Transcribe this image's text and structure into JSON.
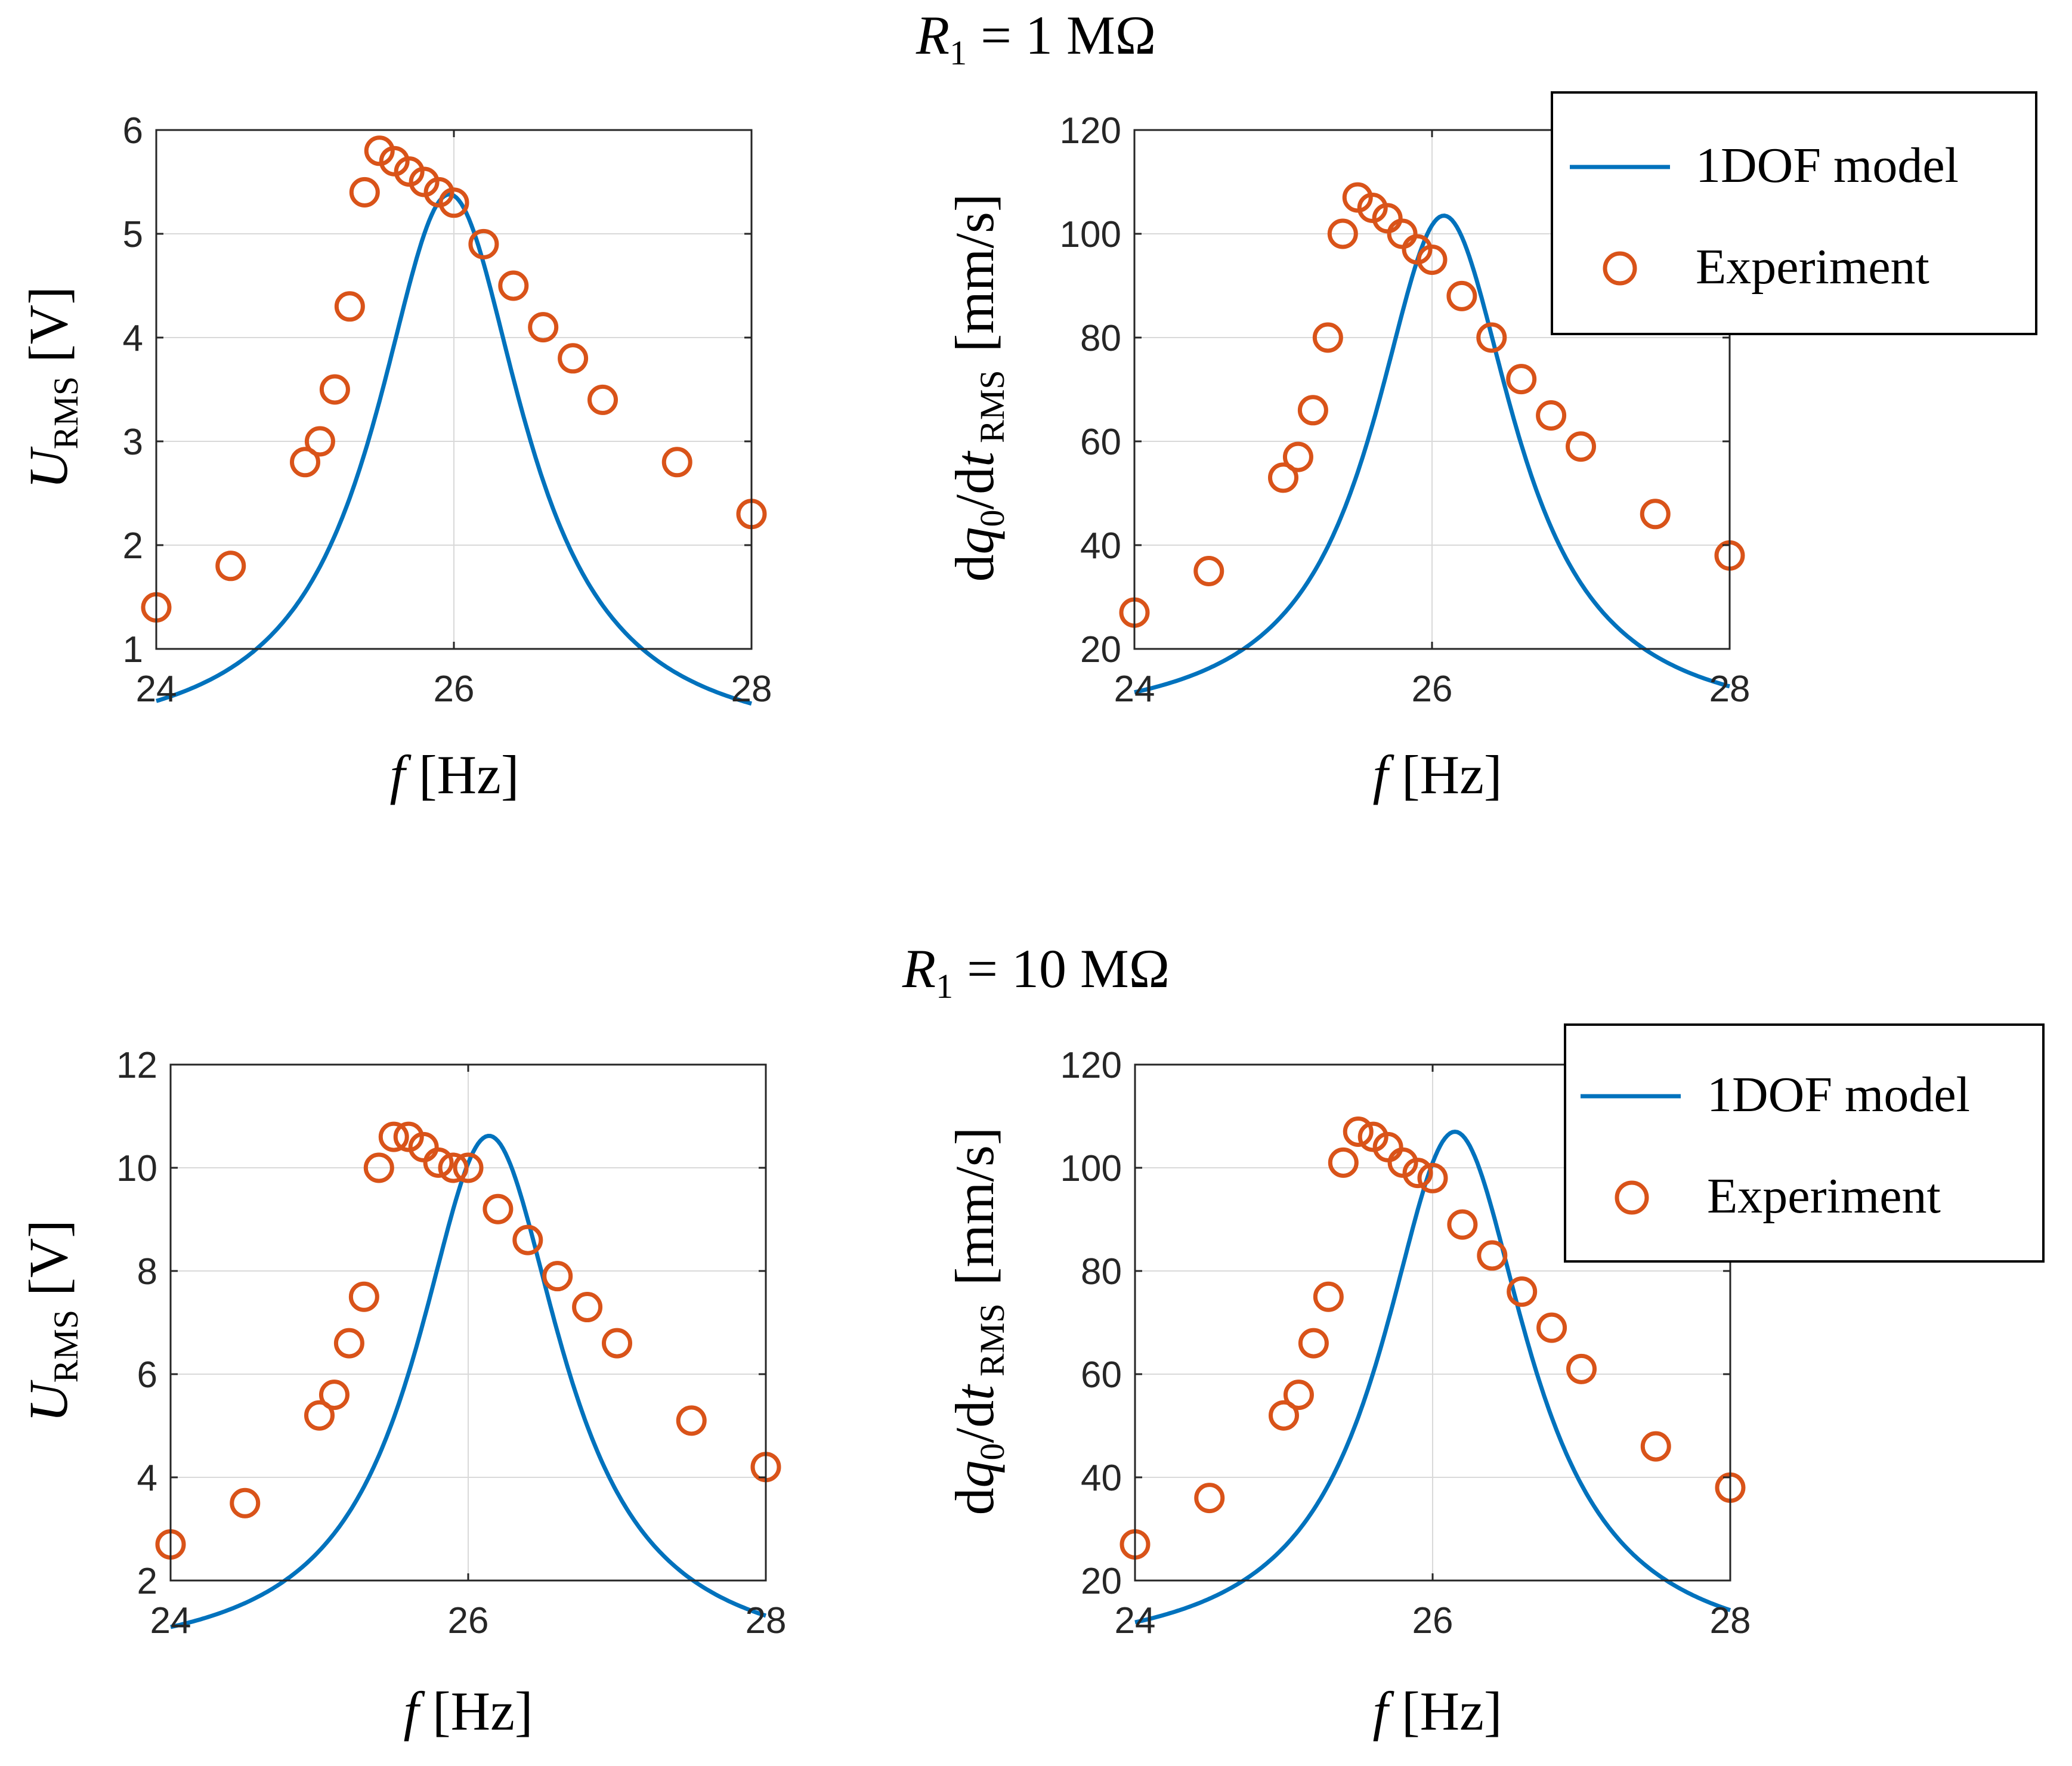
{
  "titles": {
    "top": {
      "sym": "R",
      "sub": "1",
      "rest": " = 1 MΩ"
    },
    "bottom": {
      "sym": "R",
      "sub": "1",
      "rest": " = 10 MΩ"
    }
  },
  "colors": {
    "model": "#0072bd",
    "experiment": "#d95319"
  },
  "legend": {
    "model": "1DOF model",
    "experiment": "Experiment"
  },
  "chart_data": [
    {
      "type": "line+scatter",
      "panel": "top-left",
      "xlabel": {
        "sym": "f",
        "unit": " [Hz]"
      },
      "ylabel": {
        "sym": "U",
        "sub": "RMS",
        "unit": " [V]"
      },
      "xlim": [
        24,
        28
      ],
      "ylim": [
        1,
        6
      ],
      "xticks": [
        24,
        26,
        28
      ],
      "yticks": [
        1,
        2,
        3,
        4,
        5,
        6
      ],
      "grid": true,
      "legend": null,
      "model": {
        "name": "1DOF model",
        "peak_f": 25.97,
        "peak": 5.38,
        "base": 0.03,
        "halfwidth": 0.61
      },
      "experiment": {
        "name": "Experiment",
        "x": [
          24,
          24.5,
          25,
          25.1,
          25.2,
          25.3,
          25.4,
          25.5,
          25.6,
          25.7,
          25.8,
          25.9,
          26,
          26.2,
          26.4,
          26.6,
          26.8,
          27,
          27.5,
          28
        ],
        "y": [
          1.4,
          1.8,
          2.8,
          3.0,
          3.5,
          4.3,
          5.4,
          5.8,
          5.7,
          5.6,
          5.5,
          5.4,
          5.3,
          4.9,
          4.5,
          4.1,
          3.8,
          3.4,
          2.8,
          2.3
        ]
      }
    },
    {
      "type": "line+scatter",
      "panel": "top-right",
      "xlabel": {
        "sym": "f",
        "unit": " [Hz]"
      },
      "ylabel": {
        "pre": "d",
        "sym": "q",
        "sub0": "0",
        "mid": "/d",
        "sym2": "t",
        "sub": " RMS",
        "unit": "[mm/s]"
      },
      "xlim": [
        24,
        28
      ],
      "ylim": [
        20,
        120
      ],
      "xticks": [
        24,
        26,
        28
      ],
      "yticks": [
        20,
        40,
        60,
        80,
        100,
        120
      ],
      "grid": true,
      "legend": "top-right",
      "model": {
        "name": "1DOF model",
        "peak_f": 26.08,
        "peak": 103.5,
        "base": 4.5,
        "halfwidth": 0.58
      },
      "experiment": {
        "name": "Experiment",
        "x": [
          24,
          24.5,
          25,
          25.1,
          25.2,
          25.3,
          25.4,
          25.5,
          25.6,
          25.7,
          25.8,
          25.9,
          26,
          26.2,
          26.4,
          26.6,
          26.8,
          27,
          27.5,
          28
        ],
        "y": [
          27,
          35,
          53,
          57,
          66,
          80,
          100,
          107,
          105,
          103,
          100,
          97,
          95,
          88,
          80,
          72,
          65,
          59,
          46,
          38
        ]
      }
    },
    {
      "type": "line+scatter",
      "panel": "bottom-left",
      "xlabel": {
        "sym": "f",
        "unit": " [Hz]"
      },
      "ylabel": {
        "sym": "U",
        "sub": "RMS",
        "unit": " [V]"
      },
      "xlim": [
        24,
        28
      ],
      "ylim": [
        2,
        12
      ],
      "xticks": [
        24,
        26,
        28
      ],
      "yticks": [
        2,
        4,
        6,
        8,
        10,
        12
      ],
      "grid": true,
      "legend": null,
      "model": {
        "name": "1DOF model",
        "peak_f": 26.14,
        "peak": 10.62,
        "base": 0.35,
        "halfwidth": 0.6
      },
      "experiment": {
        "name": "Experiment",
        "x": [
          24,
          24.5,
          25,
          25.1,
          25.2,
          25.3,
          25.4,
          25.5,
          25.6,
          25.7,
          25.8,
          25.9,
          26,
          26.2,
          26.4,
          26.6,
          26.8,
          27,
          27.5,
          28
        ],
        "y": [
          2.7,
          3.5,
          5.2,
          5.6,
          6.6,
          7.5,
          10.0,
          10.6,
          10.6,
          10.4,
          10.1,
          10.0,
          10.0,
          9.2,
          8.6,
          7.9,
          7.3,
          6.6,
          5.1,
          4.2
        ]
      }
    },
    {
      "type": "line+scatter",
      "panel": "bottom-right",
      "xlabel": {
        "sym": "f",
        "unit": " [Hz]"
      },
      "ylabel": {
        "pre": "d",
        "sym": "q",
        "sub0": "0",
        "mid": "/d",
        "sym2": "t",
        "sub": " RMS",
        "unit": "[mm/s]"
      },
      "xlim": [
        24,
        28
      ],
      "ylim": [
        20,
        120
      ],
      "xticks": [
        24,
        26,
        28
      ],
      "yticks": [
        20,
        40,
        60,
        80,
        100,
        120
      ],
      "grid": true,
      "legend": "top-right",
      "model": {
        "name": "1DOF model",
        "peak_f": 26.15,
        "peak": 107,
        "base": 4.5,
        "halfwidth": 0.6
      },
      "experiment": {
        "name": "Experiment",
        "x": [
          24,
          24.5,
          25,
          25.1,
          25.2,
          25.3,
          25.4,
          25.5,
          25.6,
          25.7,
          25.8,
          25.9,
          26,
          26.2,
          26.4,
          26.6,
          26.8,
          27,
          27.5,
          28
        ],
        "y": [
          27,
          36,
          52,
          56,
          66,
          75,
          101,
          107,
          106,
          104,
          101,
          99,
          98,
          89,
          83,
          76,
          69,
          61,
          46,
          38
        ]
      }
    }
  ]
}
